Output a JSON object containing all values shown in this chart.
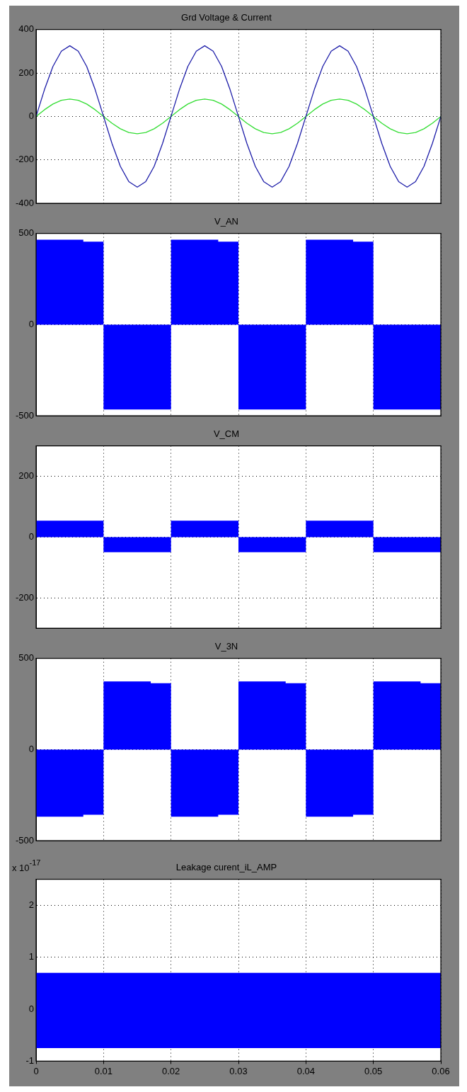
{
  "chart_data": [
    {
      "type": "line",
      "title": "Grd Voltage & Current",
      "xlim": [
        0,
        0.06
      ],
      "xticks": [
        0,
        0.01,
        0.02,
        0.03,
        0.04,
        0.05,
        0.06
      ],
      "ylim": [
        -400,
        400
      ],
      "yticks": [
        -400,
        -200,
        0,
        200,
        400
      ],
      "grid": true,
      "tick_labels": "y",
      "series": [
        {
          "color": "#1c1ca8",
          "x": [
            0,
            0.00125,
            0.0025,
            0.00375,
            0.005,
            0.00625,
            0.0075,
            0.00875,
            0.01,
            0.01125,
            0.0125,
            0.01375,
            0.015,
            0.01625,
            0.0175,
            0.01875,
            0.02,
            0.02125,
            0.0225,
            0.02375,
            0.025,
            0.02625,
            0.0275,
            0.02875,
            0.03,
            0.03125,
            0.0325,
            0.03375,
            0.035,
            0.03625,
            0.0375,
            0.03875,
            0.04,
            0.04125,
            0.0425,
            0.04375,
            0.045,
            0.04625,
            0.0475,
            0.04875,
            0.05,
            0.05125,
            0.0525,
            0.05375,
            0.055,
            0.05625,
            0.0575,
            0.05875,
            0.06
          ],
          "values": [
            0,
            124,
            230,
            300,
            325,
            300,
            230,
            124,
            0,
            -124,
            -230,
            -300,
            -325,
            -300,
            -230,
            -124,
            0,
            124,
            230,
            300,
            325,
            300,
            230,
            124,
            0,
            -124,
            -230,
            -300,
            -325,
            -300,
            -230,
            -124,
            0,
            124,
            230,
            300,
            325,
            300,
            230,
            124,
            0,
            -124,
            -230,
            -300,
            -325,
            -300,
            -230,
            -124,
            0
          ]
        },
        {
          "color": "#33dd33",
          "x": [
            0,
            0.00125,
            0.0025,
            0.00375,
            0.005,
            0.00625,
            0.0075,
            0.00875,
            0.01,
            0.01125,
            0.0125,
            0.01375,
            0.015,
            0.01625,
            0.0175,
            0.01875,
            0.02,
            0.02125,
            0.0225,
            0.02375,
            0.025,
            0.02625,
            0.0275,
            0.02875,
            0.03,
            0.03125,
            0.0325,
            0.03375,
            0.035,
            0.03625,
            0.0375,
            0.03875,
            0.04,
            0.04125,
            0.0425,
            0.04375,
            0.045,
            0.04625,
            0.0475,
            0.04875,
            0.05,
            0.05125,
            0.0525,
            0.05375,
            0.055,
            0.05625,
            0.0575,
            0.05875,
            0.06
          ],
          "values": [
            0,
            31,
            57,
            74,
            80,
            74,
            57,
            31,
            0,
            -31,
            -57,
            -74,
            -80,
            -74,
            -57,
            -31,
            0,
            31,
            57,
            74,
            80,
            74,
            57,
            31,
            0,
            -31,
            -57,
            -74,
            -80,
            -74,
            -57,
            -31,
            0,
            31,
            57,
            74,
            80,
            74,
            57,
            31,
            0,
            -31,
            -57,
            -74,
            -80,
            -74,
            -57,
            -31,
            0
          ]
        }
      ]
    },
    {
      "type": "area",
      "title": "V_AN",
      "xlim": [
        0,
        0.06
      ],
      "xticks": [
        0,
        0.01,
        0.02,
        0.03,
        0.04,
        0.05,
        0.06
      ],
      "ylim": [
        -500,
        500
      ],
      "yticks": [
        -500,
        0,
        500
      ],
      "grid": true,
      "tick_labels": "y",
      "series": [
        {
          "color": "#0000ff",
          "x": [
            0,
            0.007,
            0.007,
            0.01,
            0.01,
            0.02,
            0.02,
            0.027,
            0.027,
            0.03,
            0.03,
            0.04,
            0.04,
            0.047,
            0.047,
            0.05,
            0.05,
            0.06
          ],
          "values": [
            465,
            465,
            455,
            455,
            -465,
            -465,
            465,
            465,
            455,
            455,
            -465,
            -465,
            465,
            465,
            455,
            455,
            -465,
            -465
          ]
        }
      ]
    },
    {
      "type": "area",
      "title": "V_CM",
      "xlim": [
        0,
        0.06
      ],
      "xticks": [
        0,
        0.01,
        0.02,
        0.03,
        0.04,
        0.05,
        0.06
      ],
      "ylim": [
        -300,
        300
      ],
      "yticks": [
        -200,
        0,
        200
      ],
      "grid": true,
      "tick_labels": "y",
      "series": [
        {
          "color": "#0000ff",
          "x": [
            0,
            0.01,
            0.01,
            0.02,
            0.02,
            0.03,
            0.03,
            0.04,
            0.04,
            0.05,
            0.05,
            0.06
          ],
          "values": [
            54,
            54,
            -50,
            -50,
            54,
            54,
            -50,
            -50,
            54,
            54,
            -50,
            -50
          ]
        }
      ]
    },
    {
      "type": "area",
      "title": "V_3N",
      "xlim": [
        0,
        0.06
      ],
      "xticks": [
        0,
        0.01,
        0.02,
        0.03,
        0.04,
        0.05,
        0.06
      ],
      "ylim": [
        -500,
        500
      ],
      "yticks": [
        -500,
        0,
        500
      ],
      "grid": true,
      "tick_labels": "y",
      "series": [
        {
          "color": "#0000ff",
          "x": [
            0,
            0.007,
            0.007,
            0.01,
            0.01,
            0.017,
            0.017,
            0.02,
            0.02,
            0.027,
            0.027,
            0.03,
            0.03,
            0.037,
            0.037,
            0.04,
            0.04,
            0.047,
            0.047,
            0.05,
            0.05,
            0.057,
            0.057,
            0.06
          ],
          "values": [
            -368,
            -368,
            -358,
            -358,
            373,
            373,
            364,
            364,
            -368,
            -368,
            -358,
            -358,
            373,
            373,
            364,
            364,
            -368,
            -368,
            -358,
            -358,
            373,
            373,
            364,
            364
          ]
        }
      ]
    },
    {
      "type": "area",
      "title": "Leakage curent_iL_AMP",
      "annotations": [
        "x 10$^{-17}$"
      ],
      "xlim": [
        0,
        0.06
      ],
      "xticks": [
        0,
        0.01,
        0.02,
        0.03,
        0.04,
        0.05,
        0.06
      ],
      "ylim": [
        -1,
        2.5
      ],
      "yticks": [
        -1,
        0,
        1,
        2
      ],
      "grid": true,
      "series": [
        {
          "color": "#0000ff",
          "x": [
            0,
            0.06
          ],
          "values": [
            0.7,
            0.7
          ]
        },
        {
          "color": "#0000ff",
          "x": [
            0,
            0.06
          ],
          "values": [
            -0.75,
            -0.75
          ]
        }
      ]
    }
  ]
}
